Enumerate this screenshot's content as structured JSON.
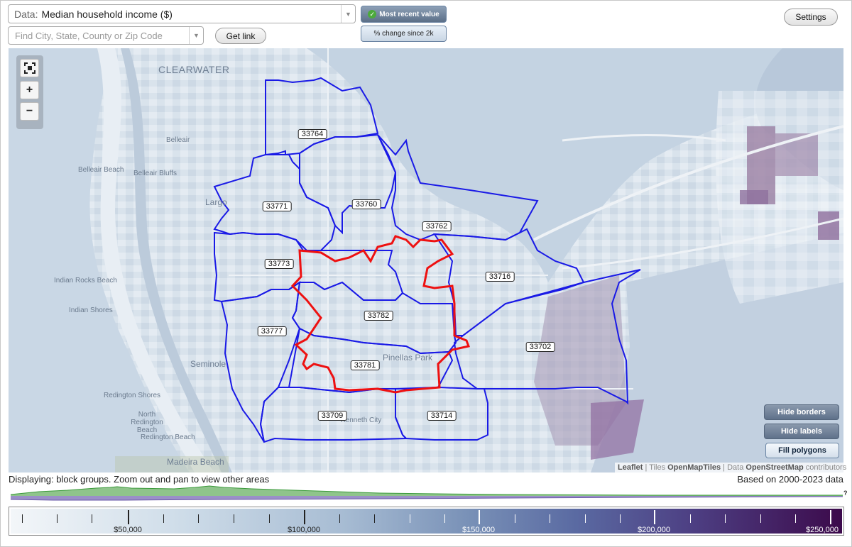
{
  "data_select": {
    "label": "Data:",
    "value": "Median household income ($)"
  },
  "search": {
    "placeholder": "Find City, State, County or Zip Code"
  },
  "get_link": "Get link",
  "toggles": {
    "most_recent": "Most recent value",
    "pct_change": "% change since 2k"
  },
  "settings": "Settings",
  "zoom": {
    "fullscreen_icon": "fullscreen-icon",
    "plus": "+",
    "minus": "−"
  },
  "place_labels": {
    "clearwater": "CLEARWATER",
    "belleair": "Belleair",
    "belleair_beach": "Belleair Beach",
    "belleair_bluffs": "Belleair Bluffs",
    "largo": "Largo",
    "indian_rocks": "Indian Rocks Beach",
    "indian_shores": "Indian Shores",
    "seminole": "Seminole",
    "redington_shores": "Redington Shores",
    "north_redington": "North Redington Beach",
    "redington_beach": "Redington Beach",
    "madeira": "Madeira Beach",
    "pinellas_park": "Pinellas Park",
    "kenneth_city": "Kenneth City"
  },
  "zip_labels": [
    "33764",
    "33771",
    "33760",
    "33762",
    "33773",
    "33716",
    "33782",
    "33777",
    "33702",
    "33781",
    "33709",
    "33714"
  ],
  "map_buttons": {
    "hide_borders": "Hide borders",
    "hide_labels": "Hide labels",
    "fill_polygons": "Fill polygons"
  },
  "attribution": {
    "leaflet": "Leaflet",
    "tiles_prefix": "| Tiles",
    "tiles": "OpenMapTiles",
    "data_prefix": "| Data",
    "data": "OpenStreetMap",
    "contributors": "contributors"
  },
  "status_text": "Displaying: block groups. Zoom out and pan to view other areas",
  "based_on": "Based on 2000-2023 data",
  "histogram_help": "?",
  "legend": {
    "ticks": [
      "$50,000",
      "$100,000",
      "$150,000",
      "$200,000",
      "$250,000"
    ]
  },
  "colors": {
    "border_blue": "#1a1ae6",
    "highlight_red": "#ee1111",
    "scale_low": "#f3f6f9",
    "scale_high": "#3c0a4b"
  }
}
